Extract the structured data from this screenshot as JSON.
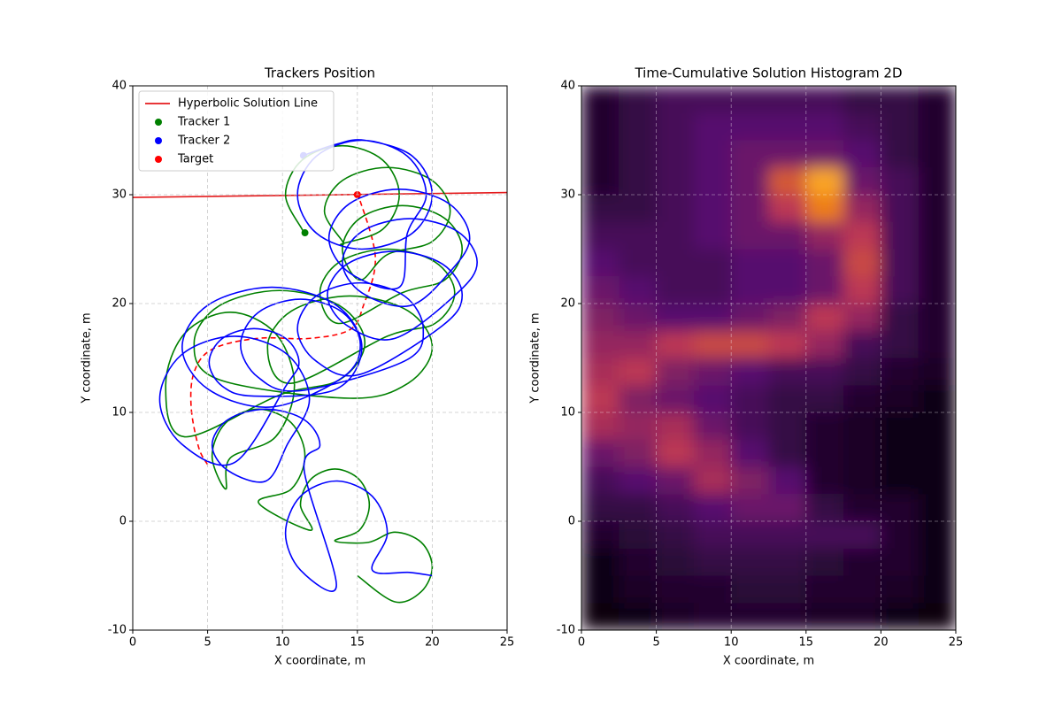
{
  "chart_data": [
    {
      "type": "line",
      "title": "Trackers Position",
      "xlabel": "X coordinate, m",
      "ylabel": "Y coordinate, m",
      "xlim": [
        0,
        25
      ],
      "ylim": [
        -10,
        40
      ],
      "xticks": [
        0,
        5,
        10,
        15,
        20,
        25
      ],
      "yticks": [
        -10,
        0,
        10,
        20,
        30,
        40
      ],
      "grid": true,
      "legend": "upper left",
      "series": [
        {
          "name": "Hyperbolic Solution Line",
          "type": "line",
          "color": "#e41a1c",
          "x": [
            0,
            25
          ],
          "y": [
            29.75,
            30.2
          ]
        },
        {
          "name": "Tracker 1",
          "type": "scatter",
          "color": "green",
          "x": [
            11.5
          ],
          "y": [
            26.5
          ]
        },
        {
          "name": "Tracker 2",
          "type": "scatter",
          "color": "blue",
          "x": [
            11.4
          ],
          "y": [
            33.6
          ]
        },
        {
          "name": "Target",
          "type": "scatter",
          "color": "red",
          "x": [
            15
          ],
          "y": [
            30
          ]
        },
        {
          "type": "line",
          "style": "dashed",
          "color": "red",
          "x": [
            15,
            16.2,
            15.4,
            14.5,
            11.8,
            8.3,
            5.3,
            4.1,
            3.9,
            4.4,
            5.0
          ],
          "y": [
            30.2,
            24.3,
            19.8,
            17.6,
            16.8,
            16.8,
            15.8,
            13.7,
            10.5,
            6.8,
            5.2
          ]
        },
        {
          "type": "line",
          "color": "green",
          "x": [
            15.0,
            17.5,
            19.27,
            20.0,
            19.27,
            17.5,
            15.73,
            13.5,
            15.13,
            15.8,
            15.13,
            13.5,
            11.87,
            11.2,
            11.87,
            8.4,
            10.59,
            11.5,
            10.59,
            8.4,
            6.21,
            5.3,
            6.21,
            6.5,
            9.54,
            10.8,
            9.54,
            6.5,
            3.46,
            2.2,
            3.46,
            9.8,
            13.83,
            15.5,
            13.83,
            9.8,
            5.77,
            4.1,
            5.77,
            14.5,
            18.39,
            20,
            18.39,
            14.5,
            10.61,
            9,
            10.61,
            17,
            20.18,
            21.5,
            20.18,
            17,
            13.82,
            12.5,
            13.82,
            18,
            20.83,
            22,
            20.83,
            18,
            15.17,
            14,
            15.17,
            17,
            19.97,
            21.2,
            19.97,
            17,
            14.03,
            12.8,
            14.03,
            14,
            16.69,
            17.8,
            16.69,
            14,
            11.31,
            10.2,
            11.31,
            11.5
          ],
          "y": [
            -5.0,
            -7.4,
            -6.46,
            -4.2,
            -1.94,
            -1.0,
            -1.94,
            -1.8,
            -0.83,
            1.5,
            3.83,
            4.8,
            3.83,
            1.5,
            -0.83,
            1.7,
            2.96,
            6,
            9.04,
            10.3,
            9.04,
            6,
            2.96,
            5.8,
            7.76,
            12.5,
            17.24,
            19.2,
            17.24,
            12.5,
            7.76,
            11.6,
            13.01,
            16.4,
            19.79,
            21.2,
            19.79,
            16.4,
            13.01,
            11.3,
            12.68,
            16,
            19.32,
            20.7,
            19.32,
            16,
            12.68,
            17,
            18.17,
            21,
            23.83,
            25,
            23.83,
            21,
            18.17,
            21,
            22.17,
            25,
            27.83,
            29,
            27.83,
            25,
            22.17,
            24.5,
            25.67,
            28.5,
            31.33,
            32.5,
            31.33,
            28.5,
            25.67,
            25.5,
            26.82,
            30,
            33.18,
            34.5,
            33.18,
            30,
            26.82,
            26.5
          ]
        },
        {
          "type": "line",
          "color": "blue",
          "x": [
            20,
            18.5,
            16.0,
            17,
            16.0,
            13.6,
            11.2,
            10.2,
            11.2,
            13.6,
            11.45,
            12.5,
            11.45,
            8.9,
            6.35,
            5.3,
            6.35,
            8.9,
            10.34,
            11.8,
            10.34,
            6.8,
            3.26,
            1.8,
            3.26,
            6.8,
            10.22,
            11.1,
            10.22,
            8.1,
            5.98,
            5.1,
            5.98,
            8.1,
            13.54,
            15.3,
            13.54,
            9.3,
            5.06,
            3.3,
            5.06,
            9.3,
            14.03,
            15.2,
            14.03,
            11.2,
            8.37,
            7.2,
            8.37,
            11.2,
            18.17,
            19.4,
            18.17,
            15.2,
            12.23,
            11,
            12.23,
            15.2,
            20.68,
            22,
            20.68,
            17.5,
            14.32,
            13,
            14.32,
            17.5,
            21.68,
            23,
            21.68,
            18.5,
            15.32,
            14,
            15.32,
            18.5,
            21.12,
            22.5,
            21.12,
            17.8,
            14.48,
            13.1,
            14.48,
            17.8,
            18.34,
            19.6,
            18.34,
            15.3,
            12.26,
            11,
            12.26,
            15.3,
            18.68,
            20,
            18.68,
            15.5,
            13.5,
            11.4
          ],
          "y": [
            -5,
            -4.7,
            -4.49,
            -1.1,
            2.29,
            3.7,
            2.29,
            -1.1,
            -4.49,
            -5.9,
            4.67,
            7,
            9.33,
            10.3,
            9.33,
            7,
            4.67,
            3.7,
            7.1,
            11.2,
            15.3,
            17,
            15.3,
            11.2,
            7.1,
            5.4,
            12.41,
            14.6,
            16.79,
            17.7,
            16.79,
            14.6,
            12.41,
            11.5,
            12.11,
            16,
            19.89,
            21.5,
            19.89,
            16,
            12.11,
            10.5,
            13.23,
            16.2,
            19.17,
            20.4,
            19.17,
            16.2,
            13.23,
            12,
            14.73,
            17.7,
            20.67,
            21.9,
            20.67,
            17.7,
            14.73,
            13.5,
            17.97,
            20.8,
            23.63,
            24.8,
            23.63,
            20.8,
            17.97,
            16.8,
            20.97,
            23.8,
            26.63,
            27.8,
            26.63,
            23.8,
            20.97,
            19.8,
            22.82,
            26,
            29.18,
            30.5,
            29.18,
            26,
            22.82,
            21.5,
            26.47,
            30,
            33.54,
            35,
            33.54,
            30,
            26.47,
            25,
            26.47,
            30,
            33.54,
            35,
            34.6,
            33.6
          ]
        }
      ]
    },
    {
      "type": "heatmap",
      "title": "Time-Cumulative Solution Histogram 2D",
      "xlabel": "X coordinate, m",
      "ylabel": "Y coordinate, m",
      "xlim": [
        0,
        25
      ],
      "ylim": [
        -10,
        40
      ],
      "xticks": [
        0,
        5,
        10,
        15,
        20,
        25
      ],
      "yticks": [
        -10,
        0,
        10,
        20,
        30,
        40
      ],
      "grid": true,
      "colormap": "inferno",
      "xbins": [
        0,
        2.5,
        5,
        7.5,
        10,
        12.5,
        15,
        17.5,
        20,
        22.5,
        25
      ],
      "ybins": [
        40,
        37.5,
        35,
        32.5,
        30,
        27.5,
        25,
        22.5,
        20,
        17.5,
        15,
        12.5,
        10,
        7.5,
        5,
        2.5,
        0,
        -2.5,
        -5,
        -7.5,
        -10
      ],
      "values": [
        [
          0.1,
          0.15,
          0.2,
          0.2,
          0.2,
          0.2,
          0.2,
          0.15,
          0.15,
          0.1
        ],
        [
          0.1,
          0.15,
          0.2,
          0.25,
          0.25,
          0.25,
          0.25,
          0.2,
          0.15,
          0.1
        ],
        [
          0.1,
          0.15,
          0.2,
          0.25,
          0.3,
          0.3,
          0.3,
          0.25,
          0.15,
          0.1
        ],
        [
          0.1,
          0.15,
          0.2,
          0.25,
          0.3,
          0.6,
          0.8,
          0.3,
          0.2,
          0.1
        ],
        [
          0.15,
          0.15,
          0.2,
          0.25,
          0.3,
          0.5,
          0.7,
          0.4,
          0.2,
          0.1
        ],
        [
          0.2,
          0.2,
          0.2,
          0.25,
          0.3,
          0.3,
          0.4,
          0.5,
          0.2,
          0.1
        ],
        [
          0.25,
          0.2,
          0.2,
          0.2,
          0.25,
          0.25,
          0.3,
          0.55,
          0.2,
          0.1
        ],
        [
          0.3,
          0.25,
          0.2,
          0.2,
          0.25,
          0.25,
          0.3,
          0.5,
          0.2,
          0.1
        ],
        [
          0.35,
          0.3,
          0.25,
          0.25,
          0.3,
          0.35,
          0.5,
          0.4,
          0.15,
          0.1
        ],
        [
          0.4,
          0.4,
          0.5,
          0.55,
          0.55,
          0.5,
          0.4,
          0.2,
          0.15,
          0.1
        ],
        [
          0.45,
          0.5,
          0.35,
          0.3,
          0.25,
          0.2,
          0.2,
          0.15,
          0.1,
          0.08
        ],
        [
          0.5,
          0.35,
          0.3,
          0.25,
          0.2,
          0.15,
          0.15,
          0.1,
          0.08,
          0.05
        ],
        [
          0.45,
          0.4,
          0.45,
          0.3,
          0.2,
          0.15,
          0.1,
          0.08,
          0.05,
          0.05
        ],
        [
          0.3,
          0.35,
          0.5,
          0.4,
          0.25,
          0.15,
          0.1,
          0.08,
          0.05,
          0.05
        ],
        [
          0.2,
          0.25,
          0.3,
          0.45,
          0.35,
          0.25,
          0.1,
          0.08,
          0.05,
          0.05
        ],
        [
          0.15,
          0.15,
          0.2,
          0.25,
          0.3,
          0.3,
          0.15,
          0.1,
          0.1,
          0.05
        ],
        [
          0.1,
          0.12,
          0.15,
          0.2,
          0.2,
          0.2,
          0.2,
          0.2,
          0.1,
          0.05
        ],
        [
          0.05,
          0.1,
          0.12,
          0.15,
          0.15,
          0.15,
          0.12,
          0.1,
          0.1,
          0.05
        ],
        [
          0.05,
          0.08,
          0.1,
          0.1,
          0.12,
          0.12,
          0.1,
          0.1,
          0.08,
          0.05
        ],
        [
          0.03,
          0.05,
          0.08,
          0.1,
          0.1,
          0.1,
          0.08,
          0.08,
          0.05,
          0.03
        ]
      ]
    }
  ]
}
